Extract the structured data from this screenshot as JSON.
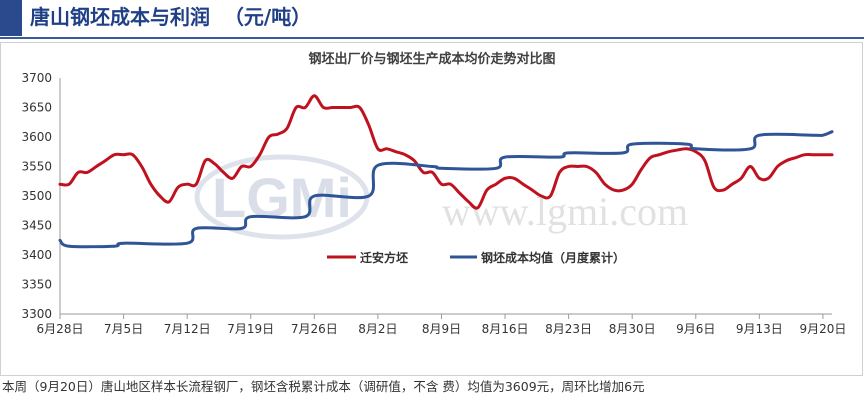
{
  "header": {
    "title": "唐山钢坯成本与利润  （元/吨）"
  },
  "footer": {
    "text": "本周（9月20日）唐山地区样本长流程钢厂，钢坯含税累计成本（调研值，不含   费）均值为3609元，周环比增加6元"
  },
  "watermark": {
    "logo": "LGMi",
    "url": "www.lgmi.com"
  },
  "colors": {
    "accent": "#2b4a8e",
    "series_red": "#c0111f",
    "series_blue": "#2f5597"
  },
  "chart_data": {
    "type": "line",
    "title": "钢坯出厂价与钢坯生产成本均价走势对比图",
    "xlabel": "",
    "ylabel": "",
    "ylim": [
      3300,
      3700
    ],
    "yticks": [
      3300,
      3350,
      3400,
      3450,
      3500,
      3550,
      3600,
      3650,
      3700
    ],
    "x_range": [
      "2021-06-28",
      "2021-09-21"
    ],
    "x_ticks": [
      {
        "date": "2021-06-28",
        "label": "6月28日"
      },
      {
        "date": "2021-07-05",
        "label": "7月5日"
      },
      {
        "date": "2021-07-12",
        "label": "7月12日"
      },
      {
        "date": "2021-07-19",
        "label": "7月19日"
      },
      {
        "date": "2021-07-26",
        "label": "7月26日"
      },
      {
        "date": "2021-08-02",
        "label": "8月2日"
      },
      {
        "date": "2021-08-09",
        "label": "8月9日"
      },
      {
        "date": "2021-08-16",
        "label": "8月16日"
      },
      {
        "date": "2021-08-23",
        "label": "8月23日"
      },
      {
        "date": "2021-08-30",
        "label": "8月30日"
      },
      {
        "date": "2021-09-06",
        "label": "9月6日"
      },
      {
        "date": "2021-09-13",
        "label": "9月13日"
      },
      {
        "date": "2021-09-20",
        "label": "9月20日"
      }
    ],
    "legend_position": "center",
    "grid": false,
    "series": [
      {
        "name": "迁安方坯",
        "color": "#c0111f",
        "points": [
          [
            "2021-06-28",
            3520
          ],
          [
            "2021-06-29",
            3520
          ],
          [
            "2021-06-30",
            3540
          ],
          [
            "2021-07-01",
            3540
          ],
          [
            "2021-07-02",
            3550
          ],
          [
            "2021-07-03",
            3560
          ],
          [
            "2021-07-04",
            3570
          ],
          [
            "2021-07-05",
            3570
          ],
          [
            "2021-07-06",
            3570
          ],
          [
            "2021-07-07",
            3550
          ],
          [
            "2021-07-08",
            3520
          ],
          [
            "2021-07-09",
            3500
          ],
          [
            "2021-07-10",
            3490
          ],
          [
            "2021-07-11",
            3515
          ],
          [
            "2021-07-12",
            3520
          ],
          [
            "2021-07-13",
            3520
          ],
          [
            "2021-07-14",
            3560
          ],
          [
            "2021-07-15",
            3555
          ],
          [
            "2021-07-16",
            3540
          ],
          [
            "2021-07-17",
            3530
          ],
          [
            "2021-07-18",
            3550
          ],
          [
            "2021-07-19",
            3550
          ],
          [
            "2021-07-20",
            3570
          ],
          [
            "2021-07-21",
            3600
          ],
          [
            "2021-07-22",
            3605
          ],
          [
            "2021-07-23",
            3615
          ],
          [
            "2021-07-24",
            3650
          ],
          [
            "2021-07-25",
            3650
          ],
          [
            "2021-07-26",
            3670
          ],
          [
            "2021-07-27",
            3650
          ],
          [
            "2021-07-28",
            3650
          ],
          [
            "2021-07-29",
            3650
          ],
          [
            "2021-07-30",
            3650
          ],
          [
            "2021-07-31",
            3650
          ],
          [
            "2021-08-01",
            3620
          ],
          [
            "2021-08-02",
            3580
          ],
          [
            "2021-08-03",
            3580
          ],
          [
            "2021-08-04",
            3575
          ],
          [
            "2021-08-05",
            3570
          ],
          [
            "2021-08-06",
            3560
          ],
          [
            "2021-08-07",
            3540
          ],
          [
            "2021-08-08",
            3540
          ],
          [
            "2021-08-09",
            3520
          ],
          [
            "2021-08-10",
            3520
          ],
          [
            "2021-08-11",
            3505
          ],
          [
            "2021-08-12",
            3490
          ],
          [
            "2021-08-13",
            3480
          ],
          [
            "2021-08-14",
            3510
          ],
          [
            "2021-08-15",
            3520
          ],
          [
            "2021-08-16",
            3530
          ],
          [
            "2021-08-17",
            3530
          ],
          [
            "2021-08-18",
            3520
          ],
          [
            "2021-08-19",
            3510
          ],
          [
            "2021-08-20",
            3500
          ],
          [
            "2021-08-21",
            3500
          ],
          [
            "2021-08-22",
            3540
          ],
          [
            "2021-08-23",
            3550
          ],
          [
            "2021-08-24",
            3550
          ],
          [
            "2021-08-25",
            3550
          ],
          [
            "2021-08-26",
            3540
          ],
          [
            "2021-08-27",
            3520
          ],
          [
            "2021-08-28",
            3510
          ],
          [
            "2021-08-29",
            3510
          ],
          [
            "2021-08-30",
            3520
          ],
          [
            "2021-08-31",
            3545
          ],
          [
            "2021-09-01",
            3565
          ],
          [
            "2021-09-02",
            3570
          ],
          [
            "2021-09-03",
            3575
          ],
          [
            "2021-09-04",
            3578
          ],
          [
            "2021-09-05",
            3580
          ],
          [
            "2021-09-06",
            3575
          ],
          [
            "2021-09-07",
            3560
          ],
          [
            "2021-09-08",
            3515
          ],
          [
            "2021-09-09",
            3510
          ],
          [
            "2021-09-10",
            3520
          ],
          [
            "2021-09-11",
            3530
          ],
          [
            "2021-09-12",
            3550
          ],
          [
            "2021-09-13",
            3530
          ],
          [
            "2021-09-14",
            3530
          ],
          [
            "2021-09-15",
            3550
          ],
          [
            "2021-09-16",
            3560
          ],
          [
            "2021-09-17",
            3565
          ],
          [
            "2021-09-18",
            3570
          ],
          [
            "2021-09-19",
            3570
          ],
          [
            "2021-09-20",
            3570
          ],
          [
            "2021-09-21",
            3570
          ]
        ]
      },
      {
        "name": "钢坯成本均值（月度累计）",
        "color": "#2f5597",
        "points": [
          [
            "2021-06-28",
            3425
          ],
          [
            "2021-06-29",
            3415
          ],
          [
            "2021-07-04",
            3415
          ],
          [
            "2021-07-05",
            3420
          ],
          [
            "2021-07-12",
            3420
          ],
          [
            "2021-07-13",
            3445
          ],
          [
            "2021-07-18",
            3445
          ],
          [
            "2021-07-19",
            3465
          ],
          [
            "2021-07-25",
            3465
          ],
          [
            "2021-07-26",
            3500
          ],
          [
            "2021-08-01",
            3500
          ],
          [
            "2021-08-02",
            3552
          ],
          [
            "2021-08-08",
            3550
          ],
          [
            "2021-08-09",
            3547
          ],
          [
            "2021-08-15",
            3547
          ],
          [
            "2021-08-16",
            3566
          ],
          [
            "2021-08-22",
            3566
          ],
          [
            "2021-08-23",
            3573
          ],
          [
            "2021-08-29",
            3573
          ],
          [
            "2021-08-30",
            3588
          ],
          [
            "2021-09-05",
            3588
          ],
          [
            "2021-09-06",
            3580
          ],
          [
            "2021-09-12",
            3580
          ],
          [
            "2021-09-13",
            3603
          ],
          [
            "2021-09-19",
            3603
          ],
          [
            "2021-09-20",
            3603
          ],
          [
            "2021-09-21",
            3609
          ]
        ]
      }
    ]
  }
}
